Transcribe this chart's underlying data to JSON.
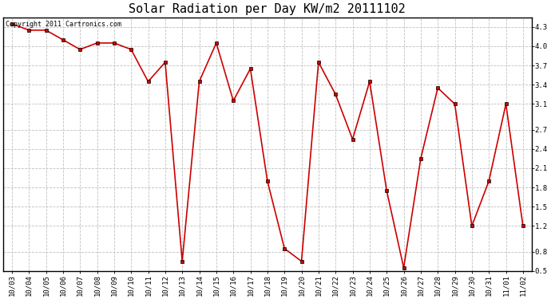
{
  "title": "Solar Radiation per Day KW/m2 20111102",
  "copyright_text": "Copyright 2011 Cartronics.com",
  "x_labels": [
    "10/03",
    "10/04",
    "10/05",
    "10/06",
    "10/07",
    "10/08",
    "10/09",
    "10/10",
    "10/11",
    "10/12",
    "10/13",
    "10/14",
    "10/15",
    "10/16",
    "10/17",
    "10/18",
    "10/19",
    "10/20",
    "10/21",
    "10/22",
    "10/23",
    "10/24",
    "10/25",
    "10/26",
    "10/27",
    "10/28",
    "10/29",
    "10/30",
    "10/31",
    "11/01",
    "11/02"
  ],
  "y_values": [
    4.35,
    4.25,
    4.25,
    4.1,
    3.95,
    4.05,
    4.05,
    3.95,
    3.45,
    3.75,
    0.65,
    3.45,
    4.05,
    3.15,
    3.65,
    1.9,
    0.85,
    0.65,
    3.75,
    3.25,
    2.55,
    3.45,
    1.75,
    0.55,
    2.25,
    3.35,
    3.1,
    1.2,
    1.9,
    3.1,
    1.2
  ],
  "line_color": "#cc0000",
  "marker_color": "#000000",
  "bg_color": "#ffffff",
  "grid_color": "#c0c0c0",
  "ylim_min": 0.5,
  "ylim_max": 4.45,
  "yticks": [
    0.5,
    0.8,
    1.2,
    1.5,
    1.8,
    2.1,
    2.4,
    2.7,
    3.1,
    3.4,
    3.7,
    4.0,
    4.3
  ],
  "title_fontsize": 11,
  "tick_fontsize": 6.5,
  "copyright_fontsize": 6
}
